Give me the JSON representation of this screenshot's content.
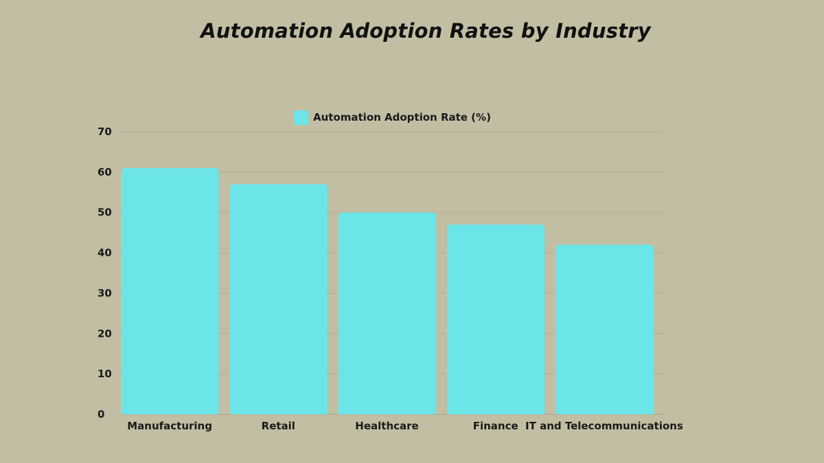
{
  "chart_data": {
    "type": "bar",
    "title": "Automation Adoption Rates by Industry",
    "categories": [
      "Manufacturing",
      "Retail",
      "Healthcare",
      "Finance",
      "IT and Telecommunications"
    ],
    "series": [
      {
        "name": "Automation Adoption Rate (%)",
        "values": [
          61,
          57,
          50,
          47,
          42
        ],
        "color": "#6be5e8"
      }
    ],
    "xlabel": "",
    "ylabel": "",
    "ylim": [
      0,
      70
    ],
    "yticks": [
      "0",
      "10",
      "20",
      "30",
      "40",
      "50",
      "60",
      "70"
    ],
    "grid": true,
    "legend_position": "top-center"
  }
}
